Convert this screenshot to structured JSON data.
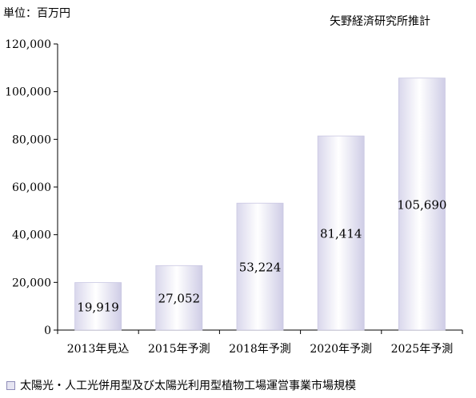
{
  "header": {
    "unit_label": "単位：百万円",
    "source_label": "矢野経済研究所推計"
  },
  "legend": {
    "label": "太陽光・人工光併用型及び太陽光利用型植物工場運営事業市場規模"
  },
  "chart_data": {
    "type": "bar",
    "categories": [
      "2013年見込",
      "2015年予測",
      "2018年予測",
      "2020年予測",
      "2025年予測"
    ],
    "series": [
      {
        "name": "太陽光・人工光併用型及び太陽光利用型植物工場運営事業市場規模",
        "values": [
          19919,
          27052,
          53224,
          81414,
          105690
        ]
      }
    ],
    "data_labels": [
      "19,919",
      "27,052",
      "53,224",
      "81,414",
      "105,690"
    ],
    "y_ticks": [
      0,
      20000,
      40000,
      60000,
      80000,
      100000,
      120000
    ],
    "y_tick_labels": [
      "0",
      "20,000",
      "40,000",
      "60,000",
      "80,000",
      "100,000",
      "120,000"
    ],
    "ylim": [
      0,
      120000
    ],
    "grid": false,
    "legend_position": "bottom-left",
    "colors": {
      "bar_edge": "#e8e7f4",
      "bar_center": "#ffffff",
      "bar_dark": "#c9c7e2",
      "axis": "#000000"
    }
  }
}
